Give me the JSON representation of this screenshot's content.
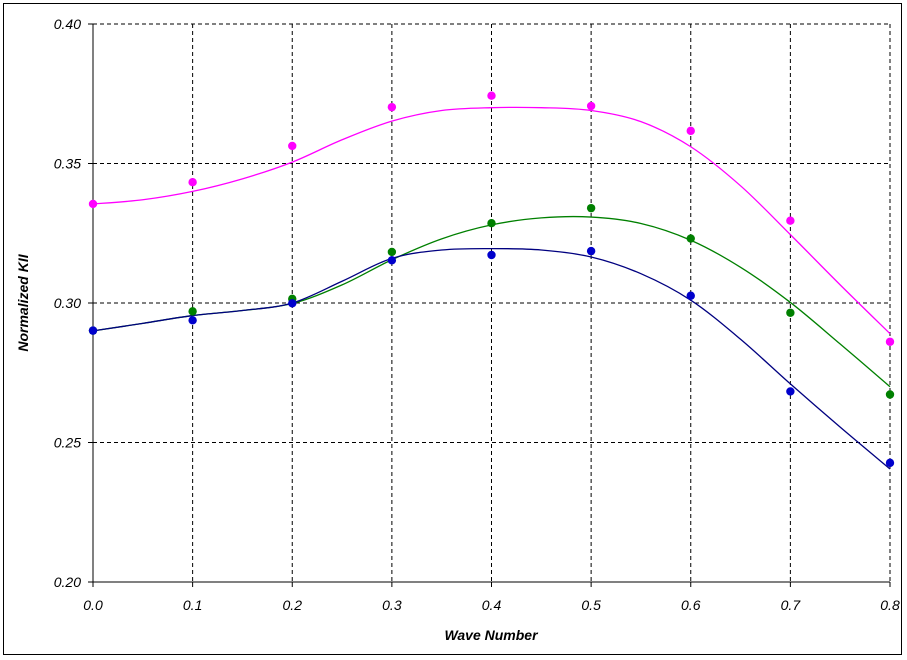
{
  "chart_data": {
    "type": "scatter",
    "xlabel": "Wave Number",
    "ylabel": "Normalized KII",
    "title": "",
    "xlim": [
      0.0,
      0.8
    ],
    "ylim": [
      0.2,
      0.4
    ],
    "x_ticks": [
      "0.0",
      "0.1",
      "0.2",
      "0.3",
      "0.4",
      "0.5",
      "0.6",
      "0.7",
      "0.8"
    ],
    "y_ticks": [
      "0.20",
      "0.25",
      "0.30",
      "0.35",
      "0.40"
    ],
    "grid": true,
    "grid_style": "dashed",
    "legend": "none",
    "series": [
      {
        "color": "#ff00ff",
        "points": {
          "x": [
            0.0,
            0.1,
            0.2,
            0.3,
            0.4,
            0.5,
            0.6,
            0.7,
            0.8
          ],
          "y": [
            0.3355,
            0.3433,
            0.3563,
            0.3702,
            0.3743,
            0.3706,
            0.3617,
            0.3295,
            0.2861
          ]
        },
        "curve": {
          "x": [
            0.0,
            0.05,
            0.1,
            0.15,
            0.2,
            0.25,
            0.3,
            0.35,
            0.4,
            0.45,
            0.5,
            0.55,
            0.6,
            0.65,
            0.7,
            0.75,
            0.8
          ],
          "y": [
            0.3355,
            0.337,
            0.34,
            0.3445,
            0.3505,
            0.3585,
            0.3652,
            0.369,
            0.37,
            0.37,
            0.369,
            0.365,
            0.356,
            0.342,
            0.3245,
            0.3065,
            0.289
          ]
        }
      },
      {
        "color": "#008000",
        "points": {
          "x": [
            0.0,
            0.1,
            0.2,
            0.3,
            0.4,
            0.5,
            0.6,
            0.7,
            0.8
          ],
          "y": [
            0.2901,
            0.297,
            0.3015,
            0.3183,
            0.3286,
            0.334,
            0.3231,
            0.2965,
            0.2672
          ]
        },
        "curve": {
          "x": [
            0.0,
            0.05,
            0.1,
            0.15,
            0.2,
            0.25,
            0.3,
            0.35,
            0.4,
            0.45,
            0.5,
            0.55,
            0.6,
            0.65,
            0.7,
            0.75,
            0.8
          ],
          "y": [
            0.29,
            0.2927,
            0.2955,
            0.2973,
            0.2998,
            0.3065,
            0.3155,
            0.323,
            0.328,
            0.3305,
            0.3308,
            0.3285,
            0.3225,
            0.3128,
            0.3002,
            0.2853,
            0.27
          ]
        }
      },
      {
        "color": "#0000cc",
        "points": {
          "x": [
            0.0,
            0.1,
            0.2,
            0.3,
            0.4,
            0.5,
            0.6,
            0.7,
            0.8
          ],
          "y": [
            0.2901,
            0.2938,
            0.2999,
            0.3153,
            0.3172,
            0.3186,
            0.3026,
            0.2683,
            0.2427
          ]
        },
        "curve": {
          "x": [
            0.0,
            0.05,
            0.1,
            0.15,
            0.2,
            0.25,
            0.3,
            0.35,
            0.4,
            0.45,
            0.5,
            0.55,
            0.6,
            0.65,
            0.7,
            0.75,
            0.8
          ],
          "y": [
            0.29,
            0.2927,
            0.2955,
            0.2973,
            0.3,
            0.3078,
            0.316,
            0.319,
            0.3195,
            0.319,
            0.3165,
            0.3105,
            0.301,
            0.287,
            0.271,
            0.2555,
            0.2405
          ]
        }
      }
    ],
    "line_colors": [
      "#ff00ff",
      "#008000",
      "#000080"
    ]
  }
}
